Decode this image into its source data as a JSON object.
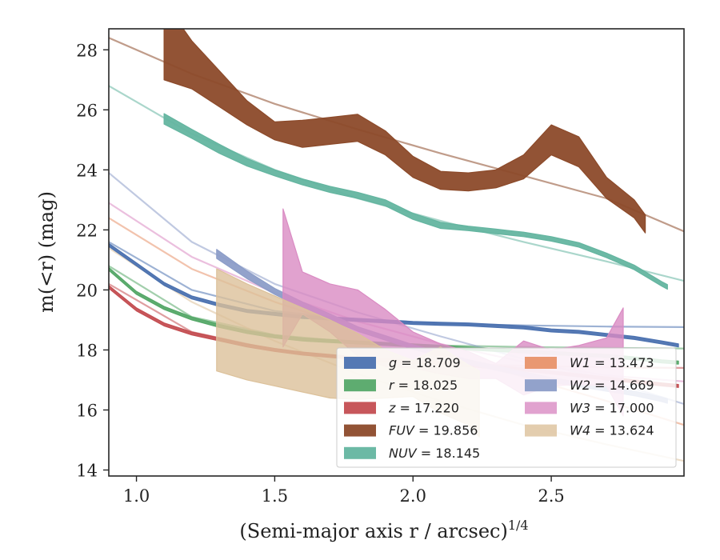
{
  "chart_data": {
    "type": "line",
    "xlabel": "(Semi-major axis r / arcsec)",
    "xlabel_power": "1/4",
    "ylabel": "m(<r) (mag)",
    "xlim": [
      0.9,
      2.98
    ],
    "ylim": [
      28.7,
      13.8
    ],
    "y_inverted": true,
    "x_ticks": [
      "1.0",
      "1.5",
      "2.0",
      "2.5"
    ],
    "y_ticks": [
      "14",
      "16",
      "18",
      "20",
      "22",
      "24",
      "26",
      "28"
    ],
    "x_tick_values": [
      1.0,
      1.5,
      2.0,
      2.5
    ],
    "y_tick_values": [
      14,
      16,
      18,
      20,
      22,
      24,
      26,
      28
    ],
    "grid": false,
    "legend_position": "bottom-right",
    "legend_columns": 2,
    "series": [
      {
        "name": "g",
        "label_value": "18.709",
        "color": "#4c72b0",
        "data_x": [
          0.9,
          1.0,
          1.1,
          1.2,
          1.3,
          1.4,
          1.5,
          1.6,
          1.7,
          1.8,
          1.9,
          2.0,
          2.1,
          2.2,
          2.3,
          2.4,
          2.5,
          2.6,
          2.7,
          2.8,
          2.9,
          2.96
        ],
        "data_y": [
          21.5,
          20.85,
          20.2,
          19.75,
          19.5,
          19.3,
          19.2,
          19.1,
          19.05,
          19.0,
          18.95,
          18.9,
          18.87,
          18.85,
          18.8,
          18.75,
          18.65,
          18.6,
          18.5,
          18.4,
          18.25,
          18.15
        ],
        "band_width": [
          0.1,
          0.1,
          0.1,
          0.1,
          0.1,
          0.1,
          0.1,
          0.1,
          0.1,
          0.1,
          0.1,
          0.1,
          0.1,
          0.1,
          0.1,
          0.1,
          0.1,
          0.1,
          0.1,
          0.1,
          0.1,
          0.1
        ],
        "model_x": [
          0.9,
          1.2,
          1.5,
          1.8,
          2.1,
          2.4,
          2.7,
          2.98
        ],
        "model_y": [
          21.6,
          20.0,
          19.3,
          19.0,
          18.88,
          18.82,
          18.78,
          18.76
        ]
      },
      {
        "name": "r",
        "label_value": "18.025",
        "color": "#55a868",
        "data_x": [
          0.9,
          1.0,
          1.1,
          1.2,
          1.3,
          1.4,
          1.5,
          1.6,
          1.7,
          1.8,
          1.9,
          2.0,
          2.1,
          2.2,
          2.3,
          2.4,
          2.5,
          2.6,
          2.7,
          2.8,
          2.9,
          2.96
        ],
        "data_y": [
          20.7,
          19.9,
          19.4,
          19.05,
          18.8,
          18.6,
          18.45,
          18.35,
          18.3,
          18.25,
          18.2,
          18.15,
          18.1,
          18.05,
          18.0,
          17.95,
          17.9,
          17.85,
          17.8,
          17.72,
          17.62,
          17.58
        ],
        "band_width": [
          0.1,
          0.1,
          0.1,
          0.1,
          0.1,
          0.1,
          0.1,
          0.1,
          0.1,
          0.1,
          0.1,
          0.1,
          0.1,
          0.1,
          0.1,
          0.1,
          0.1,
          0.1,
          0.1,
          0.1,
          0.1,
          0.1
        ],
        "model_x": [
          0.9,
          1.2,
          1.5,
          1.8,
          2.1,
          2.4,
          2.7,
          2.98
        ],
        "model_y": [
          20.8,
          19.1,
          18.5,
          18.25,
          18.15,
          18.1,
          18.07,
          18.05
        ]
      },
      {
        "name": "z",
        "label_value": "17.220",
        "color": "#c44e52",
        "data_x": [
          0.9,
          1.0,
          1.1,
          1.2,
          1.3,
          1.4,
          1.5,
          1.6,
          1.7,
          1.8,
          1.9,
          2.0,
          2.1,
          2.2,
          2.3,
          2.4,
          2.5,
          2.6,
          2.7,
          2.8,
          2.9,
          2.96
        ],
        "data_y": [
          20.1,
          19.35,
          18.85,
          18.55,
          18.35,
          18.15,
          18.0,
          17.88,
          17.8,
          17.72,
          17.65,
          17.6,
          17.55,
          17.5,
          17.42,
          17.35,
          17.25,
          17.15,
          17.05,
          16.95,
          16.85,
          16.8
        ],
        "band_width": [
          0.1,
          0.1,
          0.1,
          0.1,
          0.1,
          0.1,
          0.1,
          0.1,
          0.1,
          0.1,
          0.1,
          0.1,
          0.1,
          0.1,
          0.1,
          0.1,
          0.1,
          0.1,
          0.1,
          0.1,
          0.1,
          0.1
        ],
        "model_x": [
          0.9,
          1.2,
          1.5,
          1.8,
          2.1,
          2.4,
          2.7,
          2.98
        ],
        "model_y": [
          20.2,
          18.6,
          18.0,
          17.7,
          17.55,
          17.47,
          17.42,
          17.4
        ]
      },
      {
        "name": "FUV",
        "label_value": "19.856",
        "color": "#8c4a2a",
        "data_x": [
          1.1,
          1.2,
          1.3,
          1.4,
          1.5,
          1.6,
          1.7,
          1.8,
          1.9,
          2.0,
          2.1,
          2.2,
          2.3,
          2.4,
          2.5,
          2.6,
          2.7,
          2.8,
          2.84
        ],
        "data_y": [
          28.3,
          27.5,
          26.7,
          25.9,
          25.3,
          25.2,
          25.3,
          25.4,
          24.9,
          24.1,
          23.65,
          23.6,
          23.7,
          24.1,
          25.0,
          24.6,
          23.4,
          22.7,
          22.2
        ],
        "band_width": [
          2.6,
          1.6,
          1.2,
          0.8,
          0.6,
          0.9,
          0.9,
          0.9,
          0.8,
          0.7,
          0.6,
          0.6,
          0.6,
          0.8,
          1.0,
          1.0,
          0.7,
          0.6,
          0.6
        ],
        "model_x": [
          0.9,
          1.2,
          1.5,
          1.8,
          2.1,
          2.4,
          2.7,
          2.98
        ],
        "model_y": [
          28.4,
          27.2,
          26.2,
          25.35,
          24.55,
          23.8,
          23.05,
          21.95
        ]
      },
      {
        "name": "NUV",
        "label_value": "18.145",
        "color": "#64b5a0",
        "data_x": [
          1.1,
          1.2,
          1.3,
          1.4,
          1.5,
          1.6,
          1.7,
          1.8,
          1.9,
          2.0,
          2.1,
          2.2,
          2.3,
          2.4,
          2.5,
          2.6,
          2.7,
          2.8,
          2.9,
          2.92
        ],
        "data_y": [
          25.7,
          25.2,
          24.7,
          24.25,
          23.9,
          23.6,
          23.35,
          23.15,
          22.9,
          22.45,
          22.15,
          22.05,
          21.95,
          21.85,
          21.7,
          21.5,
          21.15,
          20.75,
          20.2,
          20.1
        ],
        "band_width": [
          0.35,
          0.3,
          0.3,
          0.25,
          0.2,
          0.2,
          0.2,
          0.2,
          0.2,
          0.2,
          0.2,
          0.15,
          0.15,
          0.15,
          0.15,
          0.15,
          0.15,
          0.15,
          0.15,
          0.15
        ],
        "model_x": [
          0.9,
          1.2,
          1.5,
          1.8,
          2.1,
          2.4,
          2.7,
          2.98
        ],
        "model_y": [
          26.8,
          25.2,
          24.0,
          23.05,
          22.3,
          21.6,
          20.95,
          20.3
        ]
      },
      {
        "name": "W1",
        "label_value": "13.473",
        "color": "#e8926a",
        "data_x": [],
        "data_y": [],
        "band_width": [],
        "model_x": [
          0.9,
          1.2,
          1.5,
          1.8,
          2.1,
          2.4,
          2.7,
          2.98
        ],
        "model_y": [
          22.4,
          20.7,
          19.6,
          18.7,
          17.9,
          17.1,
          16.3,
          15.5
        ]
      },
      {
        "name": "W2",
        "label_value": "14.669",
        "color": "#8c9dc8",
        "data_x": [
          1.29,
          1.4,
          1.5,
          1.6,
          1.7,
          1.8,
          1.9,
          2.0,
          2.1,
          2.2,
          2.3,
          2.4,
          2.5,
          2.6,
          2.7,
          2.8,
          2.9,
          2.92
        ],
        "data_y": [
          21.2,
          20.5,
          19.95,
          19.5,
          19.1,
          18.7,
          18.4,
          18.1,
          17.85,
          17.6,
          17.4,
          17.2,
          17.0,
          16.85,
          16.7,
          16.55,
          16.35,
          16.3
        ],
        "band_width": [
          0.3,
          0.25,
          0.2,
          0.2,
          0.2,
          0.15,
          0.15,
          0.15,
          0.15,
          0.15,
          0.15,
          0.15,
          0.15,
          0.15,
          0.15,
          0.15,
          0.15,
          0.15
        ],
        "model_x": [
          0.9,
          1.2,
          1.5,
          1.8,
          2.1,
          2.4,
          2.7,
          2.98
        ],
        "model_y": [
          23.9,
          21.6,
          20.2,
          19.25,
          18.45,
          17.7,
          17.0,
          16.2
        ]
      },
      {
        "name": "W3",
        "label_value": "17.000",
        "color": "#da8bc3",
        "data_x": [
          1.53,
          1.6,
          1.7,
          1.8,
          1.9,
          2.0,
          2.1,
          2.2,
          2.3,
          2.4,
          2.5,
          2.6,
          2.7,
          2.76
        ],
        "data_y": [
          20.4,
          19.9,
          19.4,
          18.9,
          18.4,
          18.0,
          17.7,
          17.5,
          17.3,
          17.4,
          17.4,
          17.5,
          17.6,
          17.6
        ],
        "band_width": [
          4.6,
          1.4,
          1.6,
          2.2,
          1.9,
          1.2,
          1.0,
          0.9,
          0.5,
          1.8,
          1.2,
          1.3,
          1.6,
          3.6
        ],
        "model_x": [
          0.9,
          1.2,
          1.5,
          1.8,
          2.1,
          2.4,
          2.7,
          2.98
        ],
        "model_y": [
          22.9,
          21.1,
          19.9,
          18.95,
          18.2,
          17.6,
          17.15,
          16.95
        ]
      },
      {
        "name": "W4",
        "label_value": "13.624",
        "color": "#dcc19a",
        "data_x": [
          1.29,
          1.4,
          1.5,
          1.6,
          1.7,
          1.8,
          1.9,
          2.0,
          2.1,
          2.2,
          2.24
        ],
        "data_y": [
          19.0,
          18.6,
          18.3,
          18.0,
          17.7,
          17.45,
          17.2,
          17.05,
          17.0,
          16.5,
          16.2
        ],
        "band_width": [
          3.4,
          3.2,
          3.0,
          2.8,
          2.6,
          2.2,
          1.6,
          1.2,
          2.2,
          2.0,
          2.2
        ],
        "model_x": [
          0.9,
          1.2,
          1.5,
          1.8,
          2.1,
          2.4,
          2.7,
          2.98
        ],
        "model_y": [
          21.4,
          19.6,
          18.3,
          17.2,
          16.3,
          15.5,
          14.85,
          14.3
        ]
      }
    ]
  }
}
